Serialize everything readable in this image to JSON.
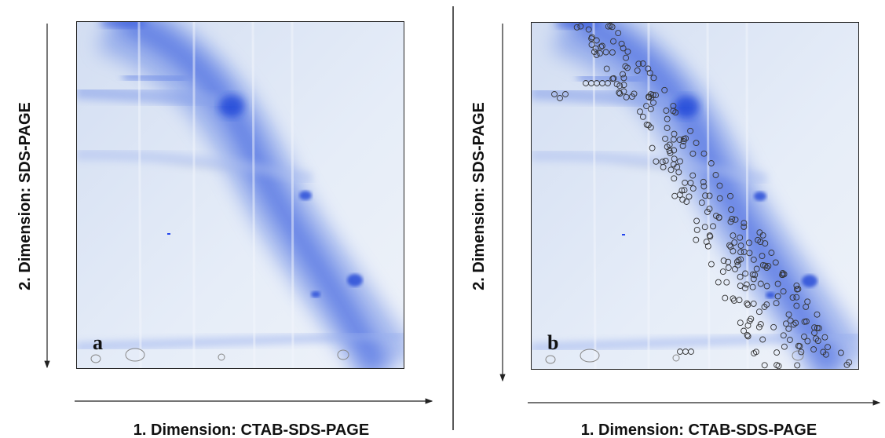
{
  "panels": [
    {
      "label": "a",
      "y_axis": "2. Dimension: SDS-PAGE",
      "x_axis": "1. Dimension: CTAB-SDS-PAGE"
    },
    {
      "label": "b",
      "y_axis": "2. Dimension: SDS-PAGE",
      "x_axis": "1. Dimension: CTAB-SDS-PAGE"
    }
  ]
}
